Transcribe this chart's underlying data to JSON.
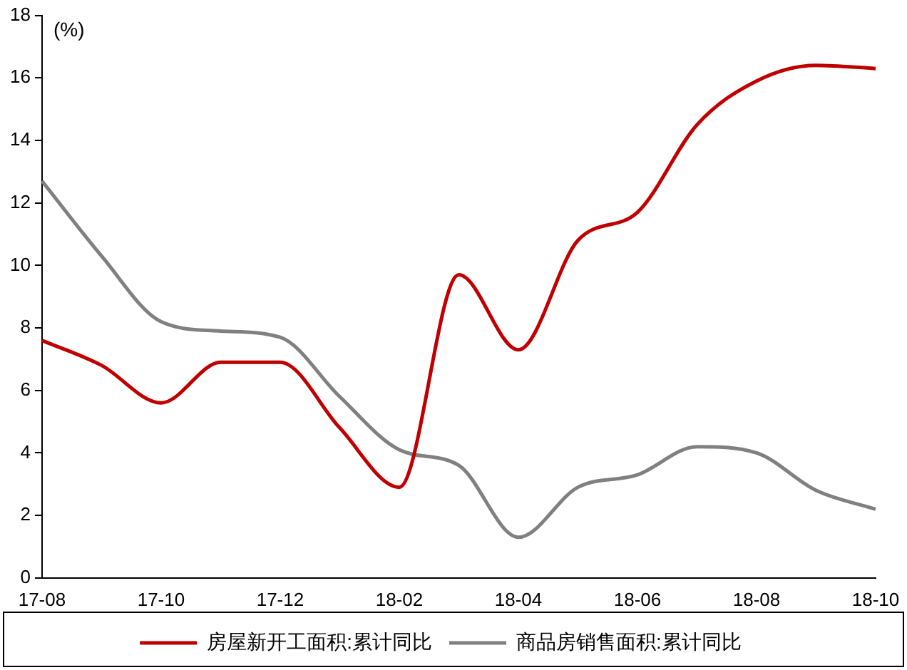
{
  "chart_data": {
    "type": "line",
    "ylabel": "(%)",
    "categories": [
      "17-08",
      null,
      "17-10",
      null,
      "17-12",
      null,
      "18-02",
      null,
      "18-04",
      null,
      "18-06",
      null,
      "18-08",
      null,
      "18-10"
    ],
    "series": [
      {
        "name": "房屋新开工面积:累计同比",
        "color": "#c00000",
        "values": [
          7.6,
          6.8,
          5.6,
          6.9,
          6.9,
          4.8,
          2.9,
          9.7,
          7.3,
          10.8,
          11.7,
          14.5,
          15.9,
          16.4,
          16.3
        ]
      },
      {
        "name": "商品房销售面积:累计同比",
        "color": "#808080",
        "values": [
          12.7,
          10.3,
          8.2,
          7.9,
          7.7,
          5.8,
          4.1,
          3.6,
          1.3,
          2.9,
          3.3,
          4.2,
          4.0,
          2.8,
          2.2
        ]
      }
    ],
    "ylim": [
      0,
      18
    ],
    "yticks": [
      0,
      2,
      4,
      6,
      8,
      10,
      12,
      14,
      16,
      18
    ],
    "grid": false,
    "legend": "bottom",
    "marker": "none",
    "line_style": "solid"
  }
}
